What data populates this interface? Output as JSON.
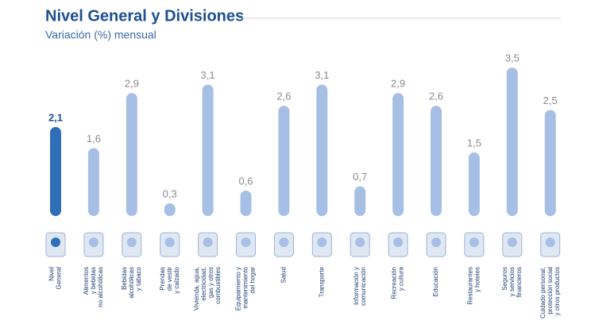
{
  "chart_data": {
    "type": "bar",
    "title": "Nivel General y Divisiones",
    "subtitle": "Variación (%) mensual",
    "categories": [
      [
        "Nivel",
        "General"
      ],
      [
        "Alimentos",
        "y bebidas",
        "no alcohólicas"
      ],
      [
        "Bebidas",
        "alcohólicas",
        "y tabaco"
      ],
      [
        "Prendas",
        "de vestir",
        "y calzado"
      ],
      [
        "Vivienda, agua,",
        "electricidad,",
        "gas y otros",
        "combustibles"
      ],
      [
        "Equipamiento y",
        "mantenimiento",
        "del hogar"
      ],
      [
        "Salud"
      ],
      [
        "Transporte"
      ],
      [
        "Información y",
        "comunicación"
      ],
      [
        "Recreación",
        "y cultura"
      ],
      [
        "Educación"
      ],
      [
        "Restaurantes",
        "y hoteles"
      ],
      [
        "Seguros",
        "y servicios",
        "financieros"
      ],
      [
        "Cuidado personal,",
        "protección social",
        "y otros productos"
      ]
    ],
    "values": [
      2.1,
      1.6,
      2.9,
      0.3,
      3.1,
      0.6,
      2.6,
      3.1,
      0.7,
      2.9,
      2.6,
      1.5,
      3.5,
      2.5
    ],
    "value_labels": [
      "2,1",
      "1,6",
      "2,9",
      "0,3",
      "3,1",
      "0,6",
      "2,6",
      "3,1",
      "0,7",
      "2,9",
      "2,6",
      "1,5",
      "3,5",
      "2,5"
    ],
    "colors": [
      "#2f6fb7",
      "#a7bfe5",
      "#a7bfe5",
      "#a7bfe5",
      "#a7bfe5",
      "#a7bfe5",
      "#a7bfe5",
      "#a7bfe5",
      "#a7bfe5",
      "#a7bfe5",
      "#a7bfe5",
      "#a7bfe5",
      "#a7bfe5",
      "#a7bfe5"
    ]
  }
}
